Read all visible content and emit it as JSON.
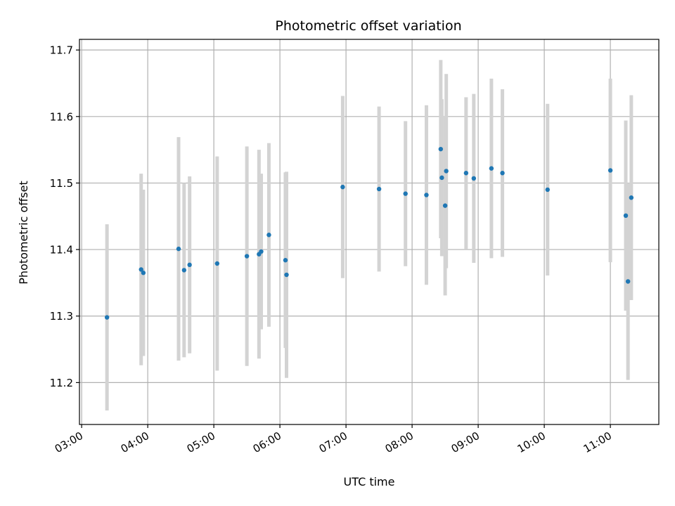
{
  "chart_data": {
    "type": "scatter",
    "title": "Photometric offset variation",
    "xlabel": "UTC time",
    "ylabel": "Photometric offset",
    "xlim": [
      "02:58",
      "11:44"
    ],
    "ylim": [
      11.137,
      11.716
    ],
    "xticks": [
      "03:00",
      "04:00",
      "05:00",
      "06:00",
      "07:00",
      "08:00",
      "09:00",
      "10:00",
      "11:00"
    ],
    "yticks": [
      11.2,
      11.3,
      11.4,
      11.5,
      11.6,
      11.7
    ],
    "grid": true,
    "colors": {
      "points": "#1f77b4",
      "errorbars": "#d3d3d3",
      "grid": "#b0b0b0"
    },
    "points": [
      {
        "x": "03:23",
        "y": 11.298,
        "err": 0.14
      },
      {
        "x": "03:54",
        "y": 11.37,
        "err": 0.144
      },
      {
        "x": "03:56",
        "y": 11.365,
        "err": 0.125
      },
      {
        "x": "04:28",
        "y": 11.401,
        "err": 0.168
      },
      {
        "x": "04:33",
        "y": 11.369,
        "err": 0.131
      },
      {
        "x": "04:38",
        "y": 11.377,
        "err": 0.133
      },
      {
        "x": "05:03",
        "y": 11.379,
        "err": 0.161
      },
      {
        "x": "05:30",
        "y": 11.39,
        "err": 0.165
      },
      {
        "x": "05:41",
        "y": 11.393,
        "err": 0.157
      },
      {
        "x": "05:43",
        "y": 11.397,
        "err": 0.117
      },
      {
        "x": "05:50",
        "y": 11.422,
        "err": 0.138
      },
      {
        "x": "06:05",
        "y": 11.384,
        "err": 0.132
      },
      {
        "x": "06:06",
        "y": 11.362,
        "err": 0.155
      },
      {
        "x": "06:57",
        "y": 11.494,
        "err": 0.137
      },
      {
        "x": "07:30",
        "y": 11.491,
        "err": 0.124
      },
      {
        "x": "07:54",
        "y": 11.484,
        "err": 0.109
      },
      {
        "x": "08:13",
        "y": 11.482,
        "err": 0.135
      },
      {
        "x": "08:26",
        "y": 11.551,
        "err": 0.134
      },
      {
        "x": "08:27",
        "y": 11.508,
        "err": 0.118
      },
      {
        "x": "08:30",
        "y": 11.466,
        "err": 0.135
      },
      {
        "x": "08:31",
        "y": 11.518,
        "err": 0.146
      },
      {
        "x": "08:49",
        "y": 11.515,
        "err": 0.114
      },
      {
        "x": "08:56",
        "y": 11.507,
        "err": 0.127
      },
      {
        "x": "09:12",
        "y": 11.522,
        "err": 0.135
      },
      {
        "x": "09:22",
        "y": 11.515,
        "err": 0.126
      },
      {
        "x": "10:03",
        "y": 11.49,
        "err": 0.129
      },
      {
        "x": "11:00",
        "y": 11.519,
        "err": 0.138
      },
      {
        "x": "11:14",
        "y": 11.451,
        "err": 0.143
      },
      {
        "x": "11:16",
        "y": 11.352,
        "err": 0.148
      },
      {
        "x": "11:19",
        "y": 11.478,
        "err": 0.154
      }
    ]
  }
}
